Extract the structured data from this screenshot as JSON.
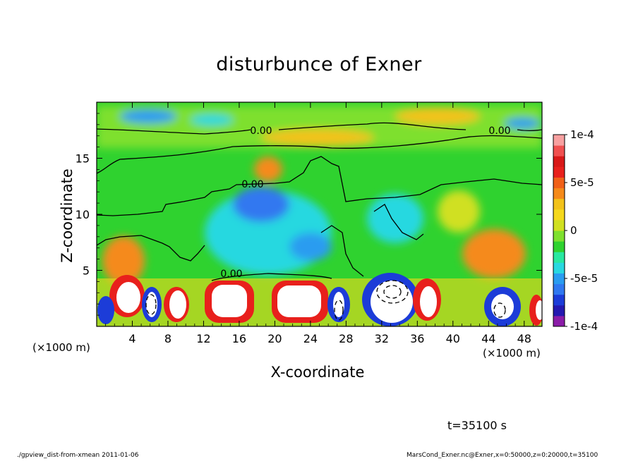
{
  "chart_data": {
    "type": "heatmap",
    "title": "disturbunce of Exner",
    "xlabel": "X-coordinate",
    "ylabel": "Z-coordinate",
    "x_unit": "(×1000 m)",
    "x_ticks": [
      4,
      8,
      12,
      16,
      20,
      24,
      28,
      32,
      36,
      40,
      44,
      48
    ],
    "y_ticks": [
      5,
      10,
      15
    ],
    "xlim": [
      0,
      50
    ],
    "ylim": [
      0,
      20
    ],
    "colorbar": {
      "range": [
        -0.0001,
        0.0001
      ],
      "tick_labels": [
        "1e-4",
        "5e-5",
        "0",
        "-5e-5",
        "-1e-4"
      ],
      "tick_values": [
        0.0001,
        5e-05,
        0,
        -5e-05,
        -0.0001
      ]
    },
    "contour_labels": [
      "0.00",
      "0.00",
      "0.00",
      "0.00"
    ],
    "time_label": "t=35100 s",
    "colors": {
      "contour": "#000000",
      "background": "#ffffff"
    }
  },
  "footer": {
    "left": "./gpview_dist-from-xmean  2011-01-06",
    "right": "MarsCond_Exner.nc@Exner,x=0:50000,z=0:20000,t=35100"
  }
}
